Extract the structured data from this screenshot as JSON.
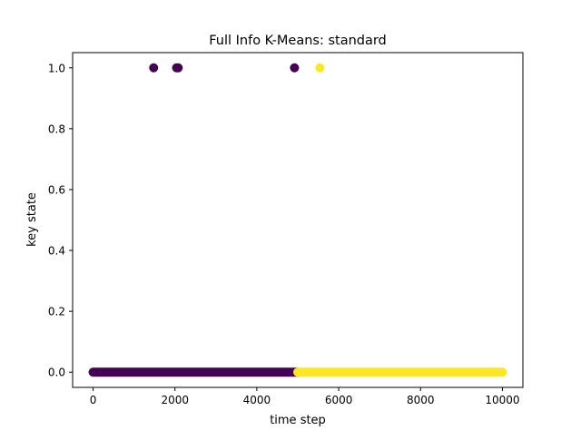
{
  "chart_data": {
    "type": "scatter",
    "title": "Full Info K-Means: standard",
    "xlabel": "time step",
    "ylabel": "key state",
    "xlim": [
      -500,
      10500
    ],
    "ylim": [
      -0.05,
      1.05
    ],
    "xticks": [
      0,
      2000,
      4000,
      6000,
      8000,
      10000
    ],
    "xtick_labels": [
      "0",
      "2000",
      "4000",
      "6000",
      "8000",
      "10000"
    ],
    "yticks": [
      0.0,
      0.2,
      0.4,
      0.6,
      0.8,
      1.0
    ],
    "ytick_labels": [
      "0.0",
      "0.2",
      "0.4",
      "0.6",
      "0.8",
      "1.0"
    ],
    "grid": false,
    "legend": "none",
    "colormap": "viridis",
    "series": [
      {
        "color": "#440154",
        "segments_at_zero": [
          [
            0,
            5000
          ]
        ],
        "points": [
          [
            1480,
            1.0
          ],
          [
            2040,
            1.0
          ],
          [
            2080,
            1.0
          ],
          [
            4920,
            1.0
          ]
        ]
      },
      {
        "color": "#fde725",
        "segments_at_zero": [
          [
            5000,
            10000
          ]
        ],
        "points": [
          [
            5540,
            1.0
          ]
        ]
      }
    ]
  }
}
